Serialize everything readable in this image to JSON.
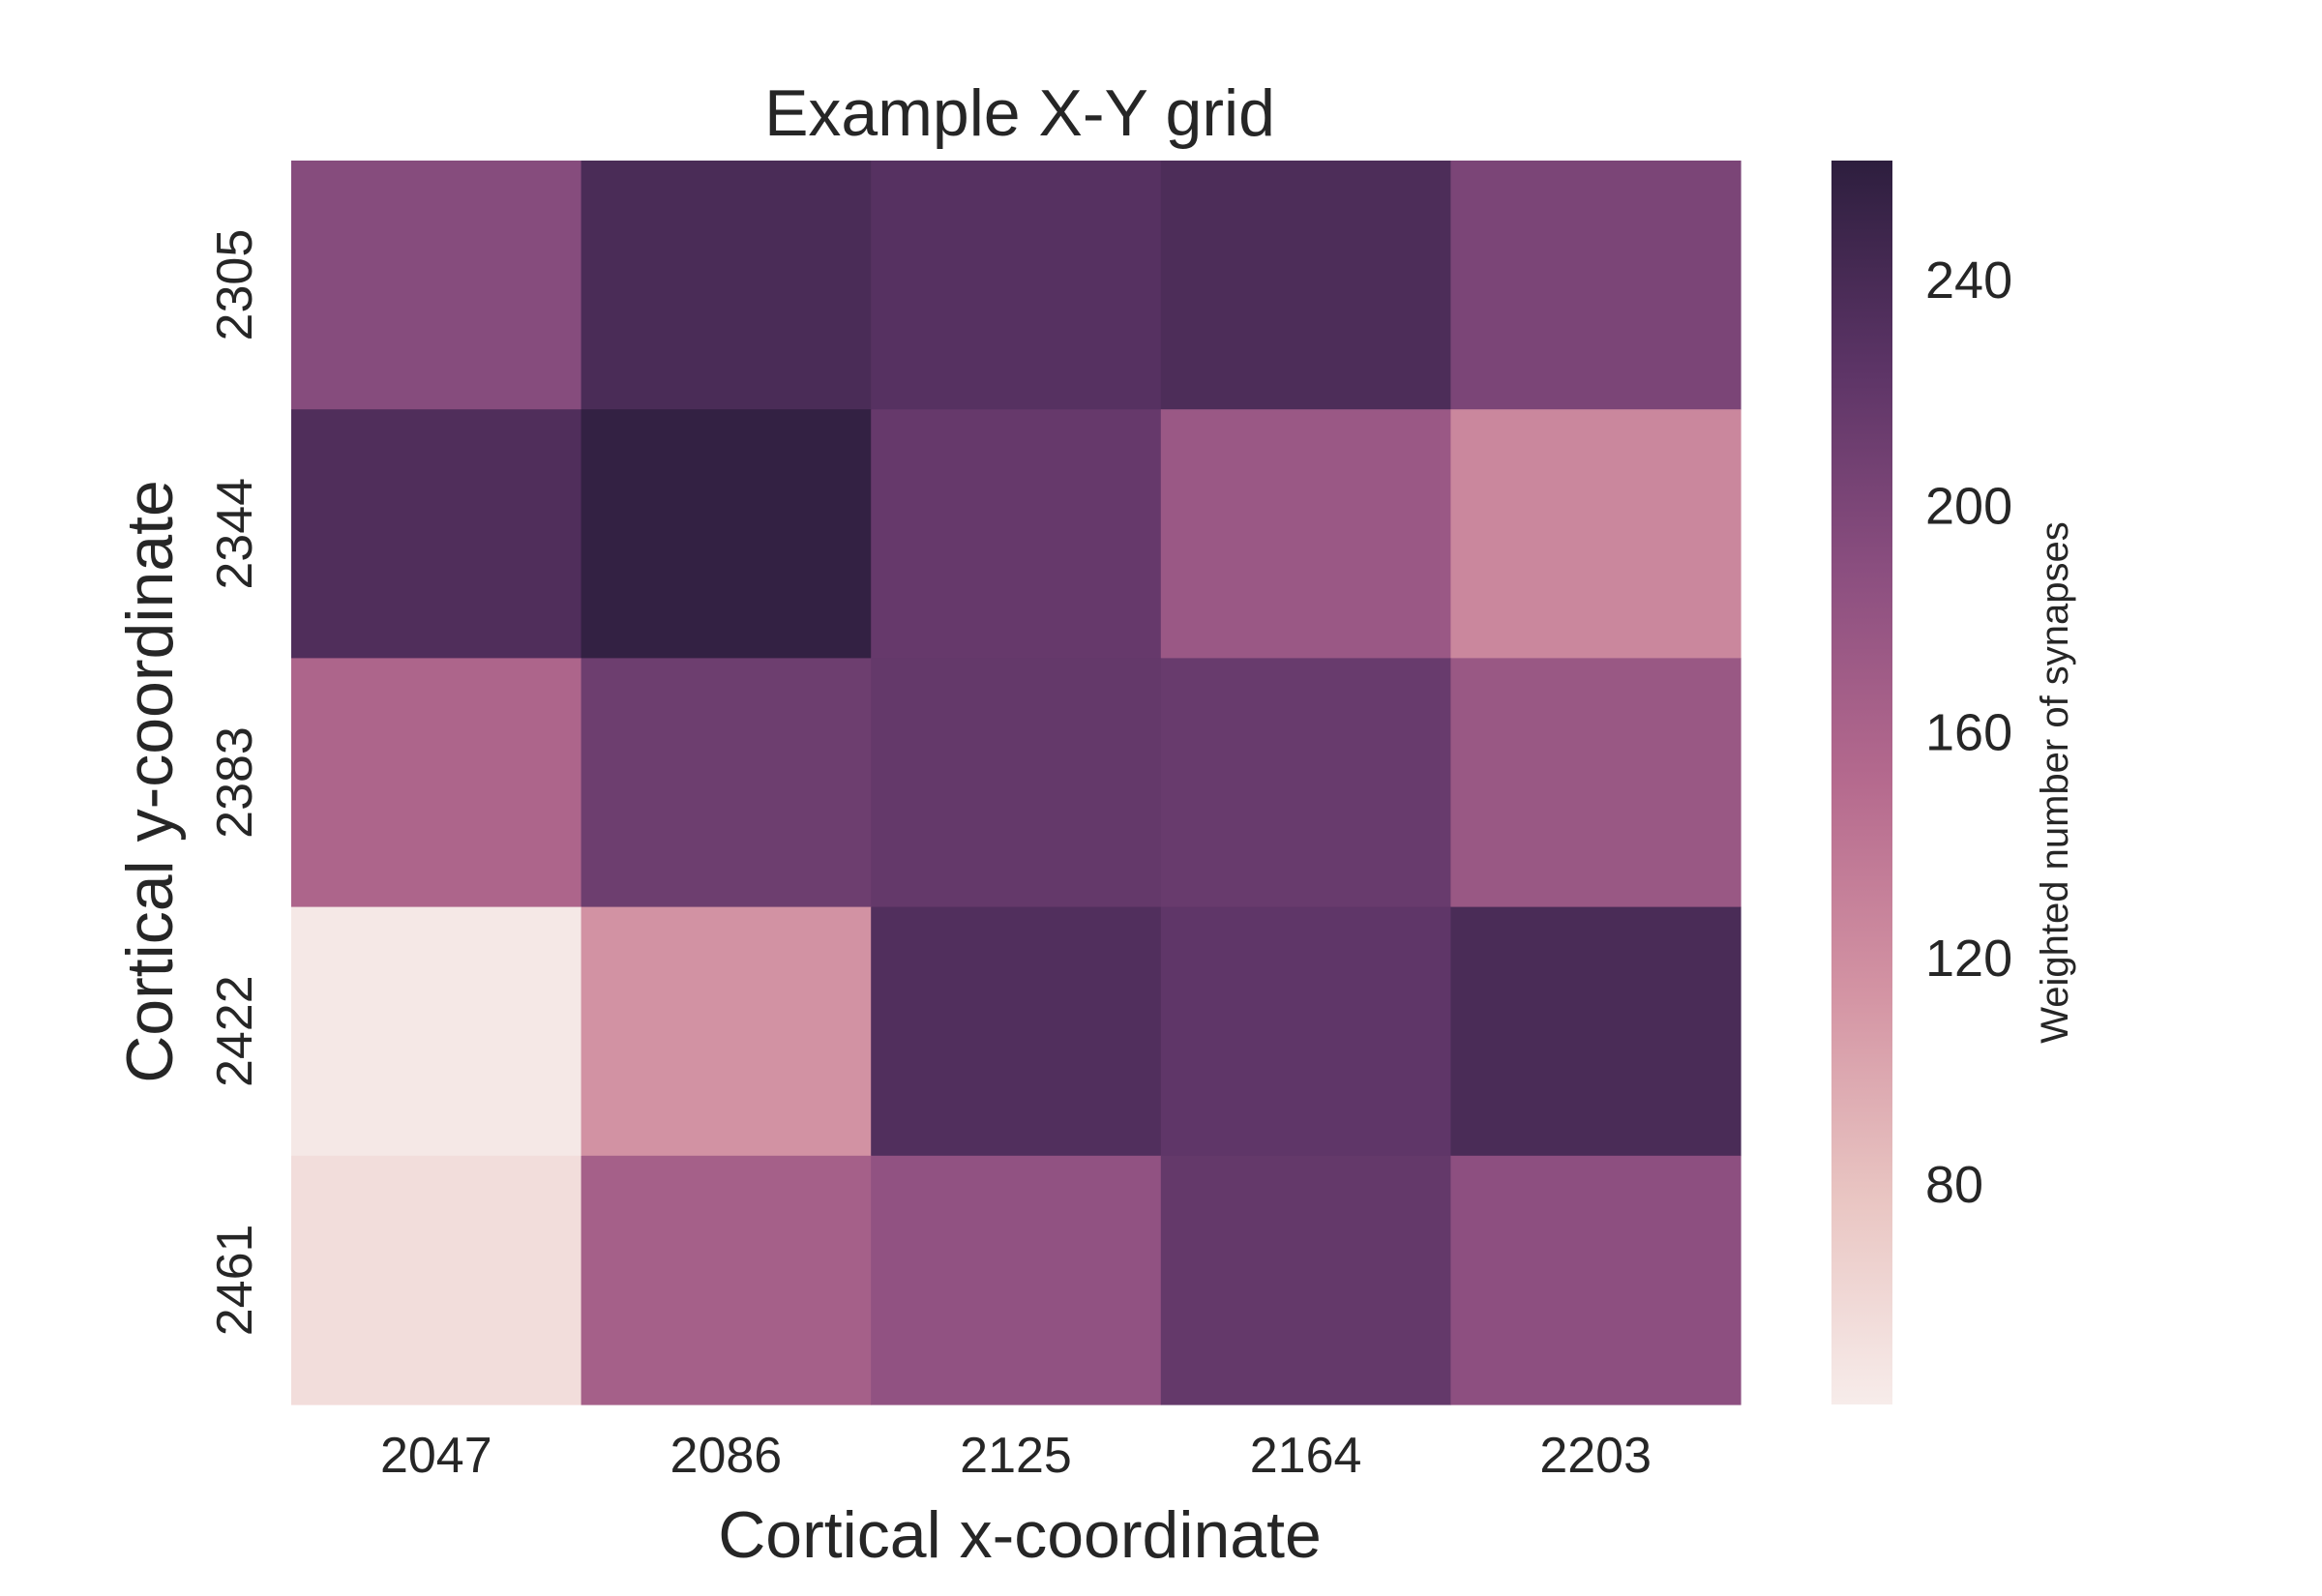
{
  "chart_data": {
    "type": "heatmap",
    "title": "Example X-Y grid",
    "xlabel": "Cortical x-coordinate",
    "ylabel": "Cortical y-coordinate",
    "x_categories": [
      "2047",
      "2086",
      "2125",
      "2164",
      "2203"
    ],
    "y_categories": [
      "2305",
      "2344",
      "2383",
      "2422",
      "2461"
    ],
    "values": [
      [
        192,
        238,
        229,
        236,
        201
      ],
      [
        234,
        256,
        217,
        175,
        125
      ],
      [
        158,
        211,
        218,
        215,
        176
      ],
      [
        45,
        115,
        233,
        222,
        238
      ],
      [
        55,
        165,
        183,
        218,
        187
      ]
    ],
    "colorbar": {
      "label": "Weighted number of synapses",
      "ticks": [
        80,
        120,
        160,
        200,
        240
      ],
      "vmin": 41,
      "vmax": 261
    },
    "colormap_stops": [
      "#f7ecea",
      "#e9c5c2",
      "#d393a3",
      "#b56a8e",
      "#8c4f80",
      "#5c3466",
      "#2d1e3e"
    ],
    "grid": false
  }
}
